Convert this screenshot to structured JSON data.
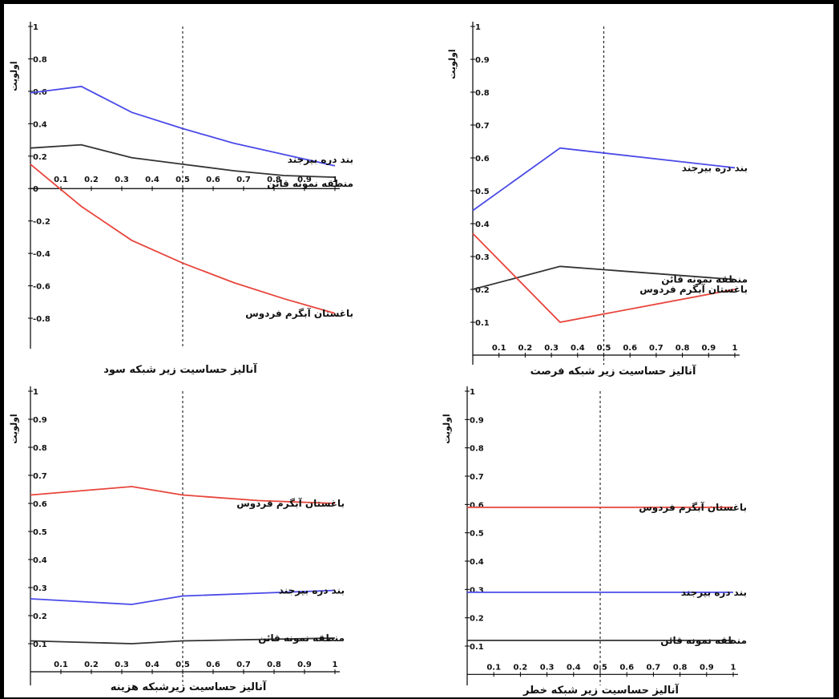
{
  "colors": {
    "red": "#e8453c",
    "blue": "#4a4ae8",
    "black": "#333333",
    "axis": "#000000",
    "frame": "#000000"
  },
  "chart_data": [
    {
      "type": "line",
      "title": "آنالیز حساسیت زیر شبکه سود",
      "ylabel": "اولویت",
      "ylim": [
        -1,
        1
      ],
      "xlim": [
        0,
        1
      ],
      "xticks": [
        "0.1",
        "0.2",
        "0.3",
        "0.4",
        "0.5",
        "0.6",
        "0.7",
        "0.8",
        "0.9",
        "1"
      ],
      "yticks": [
        "1",
        "0.8",
        "0.6",
        "0.4",
        "0.2",
        "0",
        "-0.2",
        "-0.4",
        "-0.6",
        "-0.8"
      ],
      "xticks_at_zero": true,
      "dashed_x": 0.5,
      "series": [
        {
          "name": "بند دره بیرجند",
          "color": "blue",
          "x": [
            0,
            0.167,
            0.333,
            0.5,
            0.667,
            0.833,
            1
          ],
          "y": [
            0.59,
            0.63,
            0.47,
            0.37,
            0.28,
            0.21,
            0.14
          ]
        },
        {
          "name": "منطقه نمونه قائن",
          "color": "black",
          "x": [
            0,
            0.167,
            0.333,
            0.5,
            0.667,
            0.833,
            1
          ],
          "y": [
            0.25,
            0.27,
            0.19,
            0.15,
            0.11,
            0.08,
            0.07
          ]
        },
        {
          "name": "باغستان آبگرم فردوس",
          "color": "red",
          "x": [
            0,
            0.167,
            0.333,
            0.5,
            0.667,
            0.833,
            1
          ],
          "y": [
            0.15,
            -0.11,
            -0.32,
            -0.46,
            -0.58,
            -0.68,
            -0.77
          ]
        }
      ]
    },
    {
      "type": "line",
      "title": "آنالیز حساسیت زیر شبکه فرصت",
      "ylabel": "اولویت",
      "ylim": [
        0,
        1
      ],
      "xlim": [
        0,
        1
      ],
      "xticks": [
        "0.1",
        "0.2",
        "0.3",
        "0.4",
        "0.5",
        "0.6",
        "0.7",
        "0.8",
        "0.9",
        "1"
      ],
      "yticks": [
        "1",
        "0.9",
        "0.8",
        "0.7",
        "0.6",
        "0.5",
        "0.4",
        "0.3",
        "0.2",
        "0.1"
      ],
      "dashed_x": 0.5,
      "series": [
        {
          "name": "بند دره بیرجند",
          "color": "blue",
          "x": [
            0,
            0.333,
            1
          ],
          "y": [
            0.44,
            0.63,
            0.57
          ]
        },
        {
          "name": "منطقه نمونه قائن",
          "color": "black",
          "x": [
            0,
            0.333,
            1
          ],
          "y": [
            0.2,
            0.27,
            0.23
          ]
        },
        {
          "name": "باغستان آبگرم فردوس",
          "color": "red",
          "x": [
            0,
            0.333,
            1
          ],
          "y": [
            0.37,
            0.1,
            0.2
          ]
        }
      ]
    },
    {
      "type": "line",
      "title": "آنالیز حساسیت زیرشبکه هزینه",
      "ylabel": "اولویت",
      "ylim": [
        0,
        1
      ],
      "xlim": [
        0,
        1
      ],
      "xticks": [
        "0.1",
        "0.2",
        "0.3",
        "0.4",
        "0.5",
        "0.6",
        "0.7",
        "0.8",
        "0.9",
        "1"
      ],
      "yticks": [
        "1",
        "0.9",
        "0.8",
        "0.7",
        "0.6",
        "0.5",
        "0.4",
        "0.3",
        "0.2",
        "0.1"
      ],
      "dashed_x": 0.5,
      "series": [
        {
          "name": "باغستان آبگرم فردوس",
          "color": "red",
          "x": [
            0,
            0.333,
            0.5,
            0.75,
            1
          ],
          "y": [
            0.63,
            0.66,
            0.63,
            0.61,
            0.6
          ]
        },
        {
          "name": "بند دره بیرجند",
          "color": "blue",
          "x": [
            0,
            0.333,
            0.5,
            0.75,
            1
          ],
          "y": [
            0.26,
            0.24,
            0.27,
            0.28,
            0.29
          ]
        },
        {
          "name": "منطقه نمونه قائن",
          "color": "black",
          "x": [
            0,
            0.333,
            0.5,
            1
          ],
          "y": [
            0.11,
            0.1,
            0.11,
            0.12
          ]
        }
      ]
    },
    {
      "type": "line",
      "title": "آنالیز حساسیت زیر شبکه خطر",
      "ylabel": "اولویت",
      "ylim": [
        0,
        1
      ],
      "xlim": [
        0,
        1
      ],
      "xticks": [
        "0.1",
        "0.2",
        "0.3",
        "0.4",
        "0.5",
        "0.6",
        "0.7",
        "0.8",
        "0.9",
        "1"
      ],
      "yticks": [
        "1",
        "0.9",
        "0.8",
        "0.7",
        "0.6",
        "0.5",
        "0.4",
        "0.3",
        "0.2",
        "0.1"
      ],
      "dashed_x": 0.5,
      "series": [
        {
          "name": "باغستان آبگرم فردوس",
          "color": "red",
          "x": [
            0,
            1
          ],
          "y": [
            0.59,
            0.59
          ]
        },
        {
          "name": "بند دره بیرجند",
          "color": "blue",
          "x": [
            0,
            1
          ],
          "y": [
            0.29,
            0.29
          ]
        },
        {
          "name": "منطقه نمونه قائن",
          "color": "black",
          "x": [
            0,
            1
          ],
          "y": [
            0.12,
            0.12
          ]
        }
      ]
    }
  ]
}
